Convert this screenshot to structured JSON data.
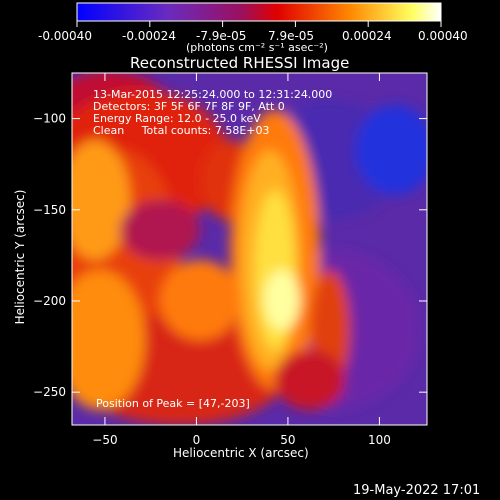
{
  "colorbar": {
    "ticks": [
      "-0.00040",
      "-0.00024",
      "-7.9e-05",
      "7.9e-05",
      "0.00024",
      "0.00040"
    ],
    "units": "(photons cm⁻² s⁻¹ asec⁻²)",
    "colors": [
      "#0000ff",
      "#6a2bbf",
      "#9a1060",
      "#e00000",
      "#ff8800",
      "#ffff60",
      "#ffffff"
    ]
  },
  "chart_data": {
    "type": "heatmap",
    "title": "Reconstructed RHESSI Image",
    "xlabel": "Heliocentric X (arcsec)",
    "ylabel": "Heliocentric Y (arcsec)",
    "xlim": [
      -68,
      126
    ],
    "ylim": [
      -268,
      -75
    ],
    "xticks": [
      -50,
      0,
      50,
      100
    ],
    "yticks": [
      -100,
      -150,
      -200,
      -250
    ],
    "value_range": [
      -0.0004,
      0.0004
    ],
    "peak": {
      "x": 47,
      "y": -203
    },
    "annotations": [
      "13-Mar-2015 12:25:24.000 to 12:31:24.000",
      "Detectors: 3F 5F 6F 7F 8F 9F, Att 0",
      "Energy Range: 12.0 - 25.0 keV",
      "Clean     Total counts: 7.58E+03"
    ],
    "peak_label": "Position of Peak = [47,-203]"
  },
  "footer": {
    "timestamp": "19-May-2022 17:01"
  }
}
